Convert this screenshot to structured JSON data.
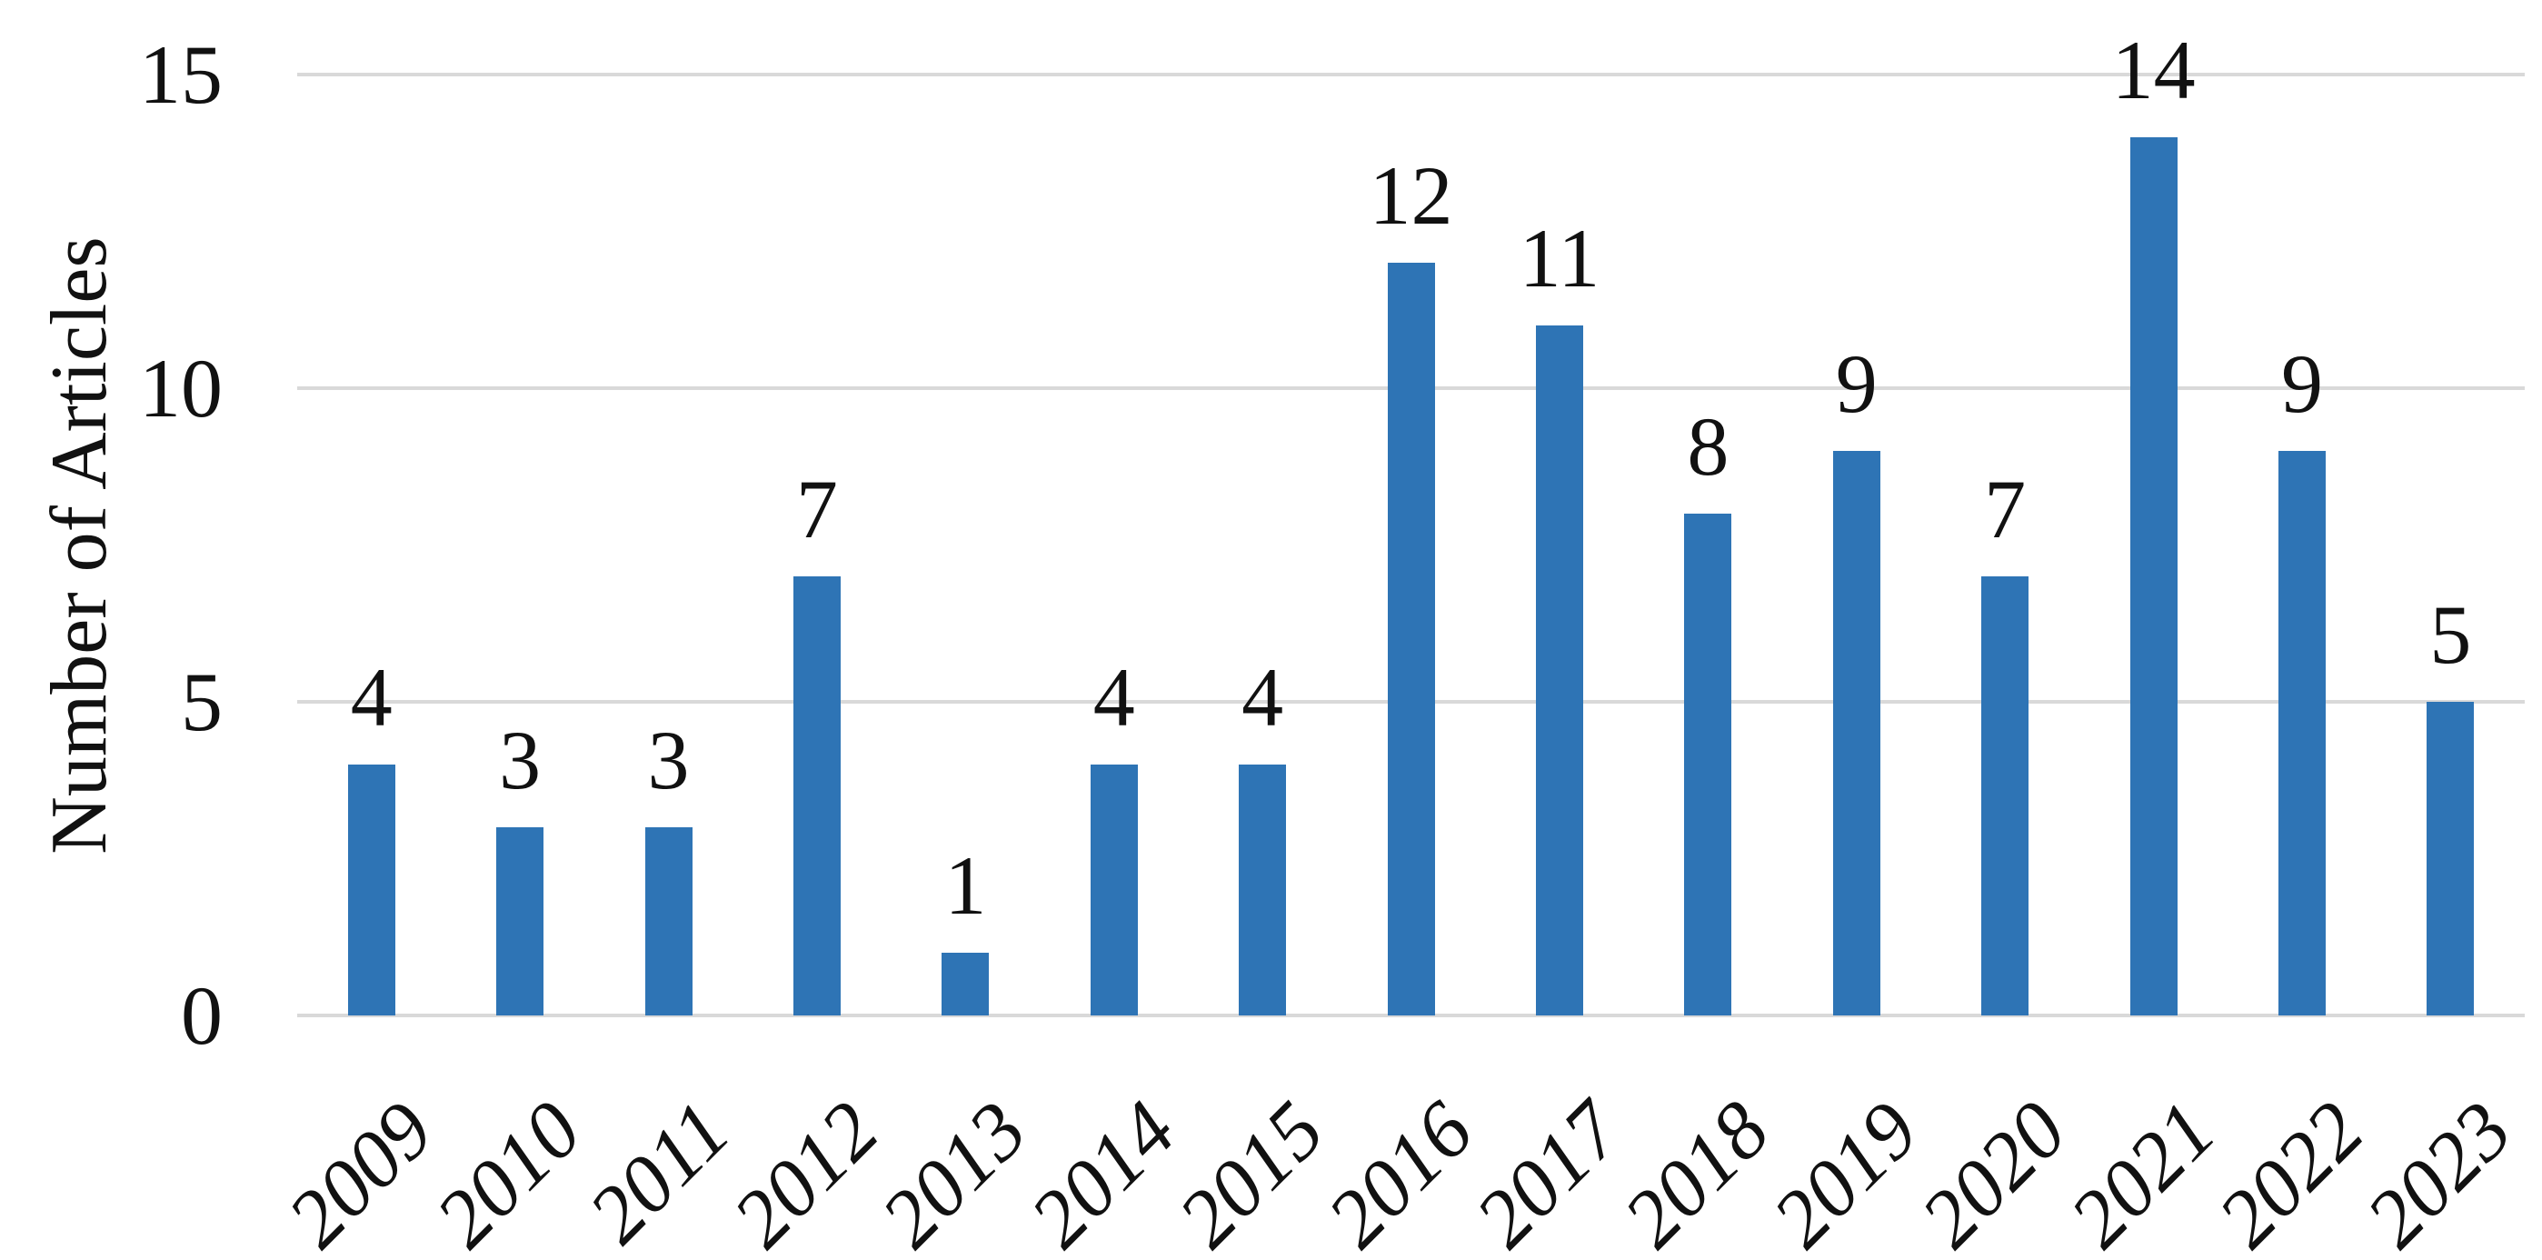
{
  "chart_data": {
    "type": "bar",
    "categories": [
      "2009",
      "2010",
      "2011",
      "2012",
      "2013",
      "2014",
      "2015",
      "2016",
      "2017",
      "2018",
      "2019",
      "2020",
      "2021",
      "2022",
      "2023"
    ],
    "values": [
      4,
      3,
      3,
      7,
      1,
      4,
      4,
      12,
      11,
      8,
      9,
      7,
      14,
      9,
      5
    ],
    "title": "",
    "xlabel": "",
    "ylabel": "Number of Articles",
    "yticks": [
      0,
      5,
      10,
      15
    ],
    "ylim": [
      0,
      15
    ],
    "grid": true,
    "legend_position": "none",
    "value_labels_shown": true,
    "x_tick_rotation_deg": -45,
    "bar_color": "#2e74b5",
    "gridline_color": "#d9d9d9",
    "text_color": "#111111",
    "background_color": "#ffffff"
  }
}
